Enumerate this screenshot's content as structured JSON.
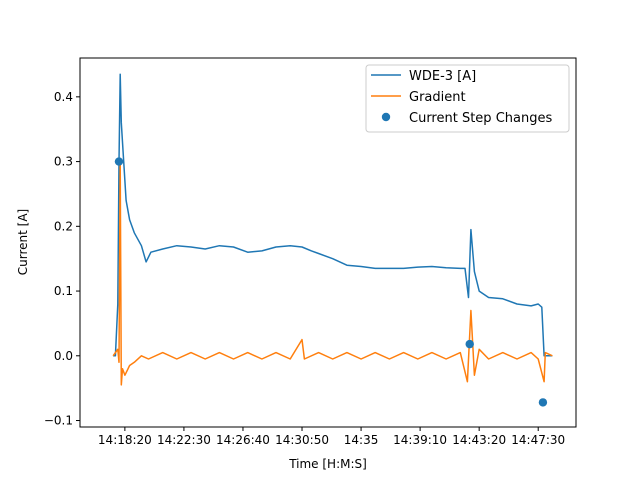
{
  "chart_data": {
    "type": "line",
    "title": "",
    "xlabel": "Time [H:M:S]",
    "ylabel": "Current [A]",
    "x_unit": "time (H:M:S)",
    "xlim": [
      "14:15:10",
      "14:50:10"
    ],
    "ylim": [
      -0.11,
      0.46
    ],
    "x_ticks": [
      "14:18:20",
      "14:22:30",
      "14:26:40",
      "14:30:50",
      "14:35",
      "14:39:10",
      "14:43:20",
      "14:47:30"
    ],
    "x_tick_times": [
      "14:18:20",
      "14:22:30",
      "14:26:40",
      "14:30:50",
      "14:35:00",
      "14:39:10",
      "14:43:20",
      "14:47:30"
    ],
    "y_ticks": [
      "−0.1",
      "0.0",
      "0.1",
      "0.2",
      "0.3",
      "0.4"
    ],
    "y_tick_values": [
      -0.1,
      0.0,
      0.1,
      0.2,
      0.3,
      0.4
    ],
    "grid": false,
    "legend_position": "top-right",
    "series": [
      {
        "name": "WDE-3 [A]",
        "kind": "line",
        "color": "#1f77b4",
        "points": [
          [
            "14:17:30",
            0.0
          ],
          [
            "14:17:40",
            0.0
          ],
          [
            "14:17:50",
            0.08
          ],
          [
            "14:17:55",
            0.3
          ],
          [
            "14:18:00",
            0.435
          ],
          [
            "14:18:05",
            0.36
          ],
          [
            "14:18:15",
            0.3
          ],
          [
            "14:18:25",
            0.24
          ],
          [
            "14:18:40",
            0.21
          ],
          [
            "14:19:00",
            0.19
          ],
          [
            "14:19:30",
            0.17
          ],
          [
            "14:19:50",
            0.145
          ],
          [
            "14:20:10",
            0.16
          ],
          [
            "14:21:00",
            0.165
          ],
          [
            "14:22:00",
            0.17
          ],
          [
            "14:23:00",
            0.168
          ],
          [
            "14:24:00",
            0.165
          ],
          [
            "14:25:00",
            0.17
          ],
          [
            "14:26:00",
            0.168
          ],
          [
            "14:27:00",
            0.16
          ],
          [
            "14:28:00",
            0.162
          ],
          [
            "14:29:00",
            0.168
          ],
          [
            "14:30:00",
            0.17
          ],
          [
            "14:30:50",
            0.168
          ],
          [
            "14:31:30",
            0.162
          ],
          [
            "14:32:00",
            0.158
          ],
          [
            "14:33:00",
            0.15
          ],
          [
            "14:34:00",
            0.14
          ],
          [
            "14:35:00",
            0.138
          ],
          [
            "14:36:00",
            0.135
          ],
          [
            "14:37:00",
            0.135
          ],
          [
            "14:38:00",
            0.135
          ],
          [
            "14:39:00",
            0.137
          ],
          [
            "14:40:00",
            0.138
          ],
          [
            "14:41:00",
            0.136
          ],
          [
            "14:42:00",
            0.135
          ],
          [
            "14:42:20",
            0.135
          ],
          [
            "14:42:35",
            0.09
          ],
          [
            "14:42:45",
            0.195
          ],
          [
            "14:43:00",
            0.13
          ],
          [
            "14:43:20",
            0.1
          ],
          [
            "14:44:00",
            0.09
          ],
          [
            "14:45:00",
            0.088
          ],
          [
            "14:46:00",
            0.08
          ],
          [
            "14:47:00",
            0.077
          ],
          [
            "14:47:30",
            0.08
          ],
          [
            "14:47:45",
            0.075
          ],
          [
            "14:47:55",
            0.0
          ],
          [
            "14:48:30",
            0.0
          ]
        ]
      },
      {
        "name": "Gradient",
        "kind": "line",
        "color": "#ff7f0e",
        "points": [
          [
            "14:17:30",
            0.0
          ],
          [
            "14:17:50",
            0.01
          ],
          [
            "14:17:55",
            -0.01
          ],
          [
            "14:18:00",
            0.3
          ],
          [
            "14:18:05",
            -0.045
          ],
          [
            "14:18:10",
            -0.02
          ],
          [
            "14:18:20",
            -0.03
          ],
          [
            "14:18:40",
            -0.015
          ],
          [
            "14:19:00",
            -0.01
          ],
          [
            "14:19:30",
            0.0
          ],
          [
            "14:20:00",
            -0.005
          ],
          [
            "14:21:00",
            0.005
          ],
          [
            "14:22:00",
            -0.005
          ],
          [
            "14:23:00",
            0.005
          ],
          [
            "14:24:00",
            -0.005
          ],
          [
            "14:25:00",
            0.005
          ],
          [
            "14:26:00",
            -0.005
          ],
          [
            "14:27:00",
            0.005
          ],
          [
            "14:28:00",
            -0.005
          ],
          [
            "14:29:00",
            0.005
          ],
          [
            "14:30:00",
            -0.005
          ],
          [
            "14:30:50",
            0.025
          ],
          [
            "14:31:00",
            -0.005
          ],
          [
            "14:32:00",
            0.005
          ],
          [
            "14:33:00",
            -0.005
          ],
          [
            "14:34:00",
            0.005
          ],
          [
            "14:35:00",
            -0.005
          ],
          [
            "14:36:00",
            0.005
          ],
          [
            "14:37:00",
            -0.005
          ],
          [
            "14:38:00",
            0.005
          ],
          [
            "14:39:00",
            -0.005
          ],
          [
            "14:40:00",
            0.005
          ],
          [
            "14:41:00",
            -0.005
          ],
          [
            "14:42:00",
            0.005
          ],
          [
            "14:42:30",
            -0.04
          ],
          [
            "14:42:45",
            0.07
          ],
          [
            "14:43:00",
            -0.03
          ],
          [
            "14:43:20",
            0.01
          ],
          [
            "14:44:00",
            -0.005
          ],
          [
            "14:45:00",
            0.005
          ],
          [
            "14:46:00",
            -0.005
          ],
          [
            "14:47:00",
            0.005
          ],
          [
            "14:47:30",
            -0.005
          ],
          [
            "14:47:55",
            -0.04
          ],
          [
            "14:48:00",
            0.005
          ],
          [
            "14:48:30",
            0.0
          ]
        ]
      },
      {
        "name": "Current Step Changes",
        "kind": "scatter",
        "color": "#1f77b4",
        "points": [
          [
            "14:17:55",
            0.3
          ],
          [
            "14:42:40",
            0.018
          ],
          [
            "14:47:50",
            -0.072
          ]
        ]
      }
    ]
  }
}
